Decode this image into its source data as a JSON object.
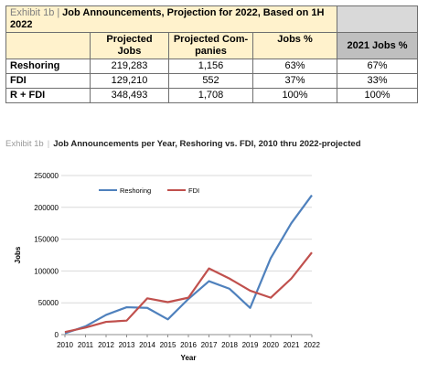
{
  "table": {
    "exhibit": "Exhibit 1b",
    "title": "Job Announcements, Projection for 2022, Based on 1H 2022",
    "headers": [
      "",
      "Projected Jobs",
      "Projected Com-panies",
      "Jobs %",
      "2021 Jobs %"
    ],
    "rows": [
      {
        "label": "Reshoring",
        "jobs": "219,283",
        "companies": "1,156",
        "pct": "63%",
        "pct2021": "67%"
      },
      {
        "label": "FDI",
        "jobs": "129,210",
        "companies": "552",
        "pct": "37%",
        "pct2021": "33%"
      },
      {
        "label": "R + FDI",
        "jobs": "348,493",
        "companies": "1,708",
        "pct": "100%",
        "pct2021": "100%"
      }
    ]
  },
  "chart_caption": {
    "exhibit": "Exhibit 1b",
    "title": "Job Announcements per Year, Reshoring vs. FDI, 2010 thru 2022-projected"
  },
  "chart_data": {
    "type": "line",
    "x": [
      2010,
      2011,
      2012,
      2013,
      2014,
      2015,
      2016,
      2017,
      2018,
      2019,
      2020,
      2021,
      2022
    ],
    "xlabel": "Year",
    "ylabel": "Jobs",
    "ylim": [
      0,
      250000
    ],
    "yticks": [
      0,
      50000,
      100000,
      150000,
      200000,
      250000
    ],
    "grid": true,
    "legend": "top",
    "series": [
      {
        "name": "Reshoring",
        "color": "#4f81bd",
        "values": [
          2000,
          13000,
          31000,
          43000,
          42000,
          24000,
          56000,
          84000,
          72000,
          42000,
          120000,
          175000,
          219000
        ]
      },
      {
        "name": "FDI",
        "color": "#c0504d",
        "values": [
          4000,
          11000,
          20000,
          22000,
          57000,
          51000,
          58000,
          104000,
          88000,
          69000,
          58000,
          88000,
          129000
        ]
      }
    ]
  }
}
